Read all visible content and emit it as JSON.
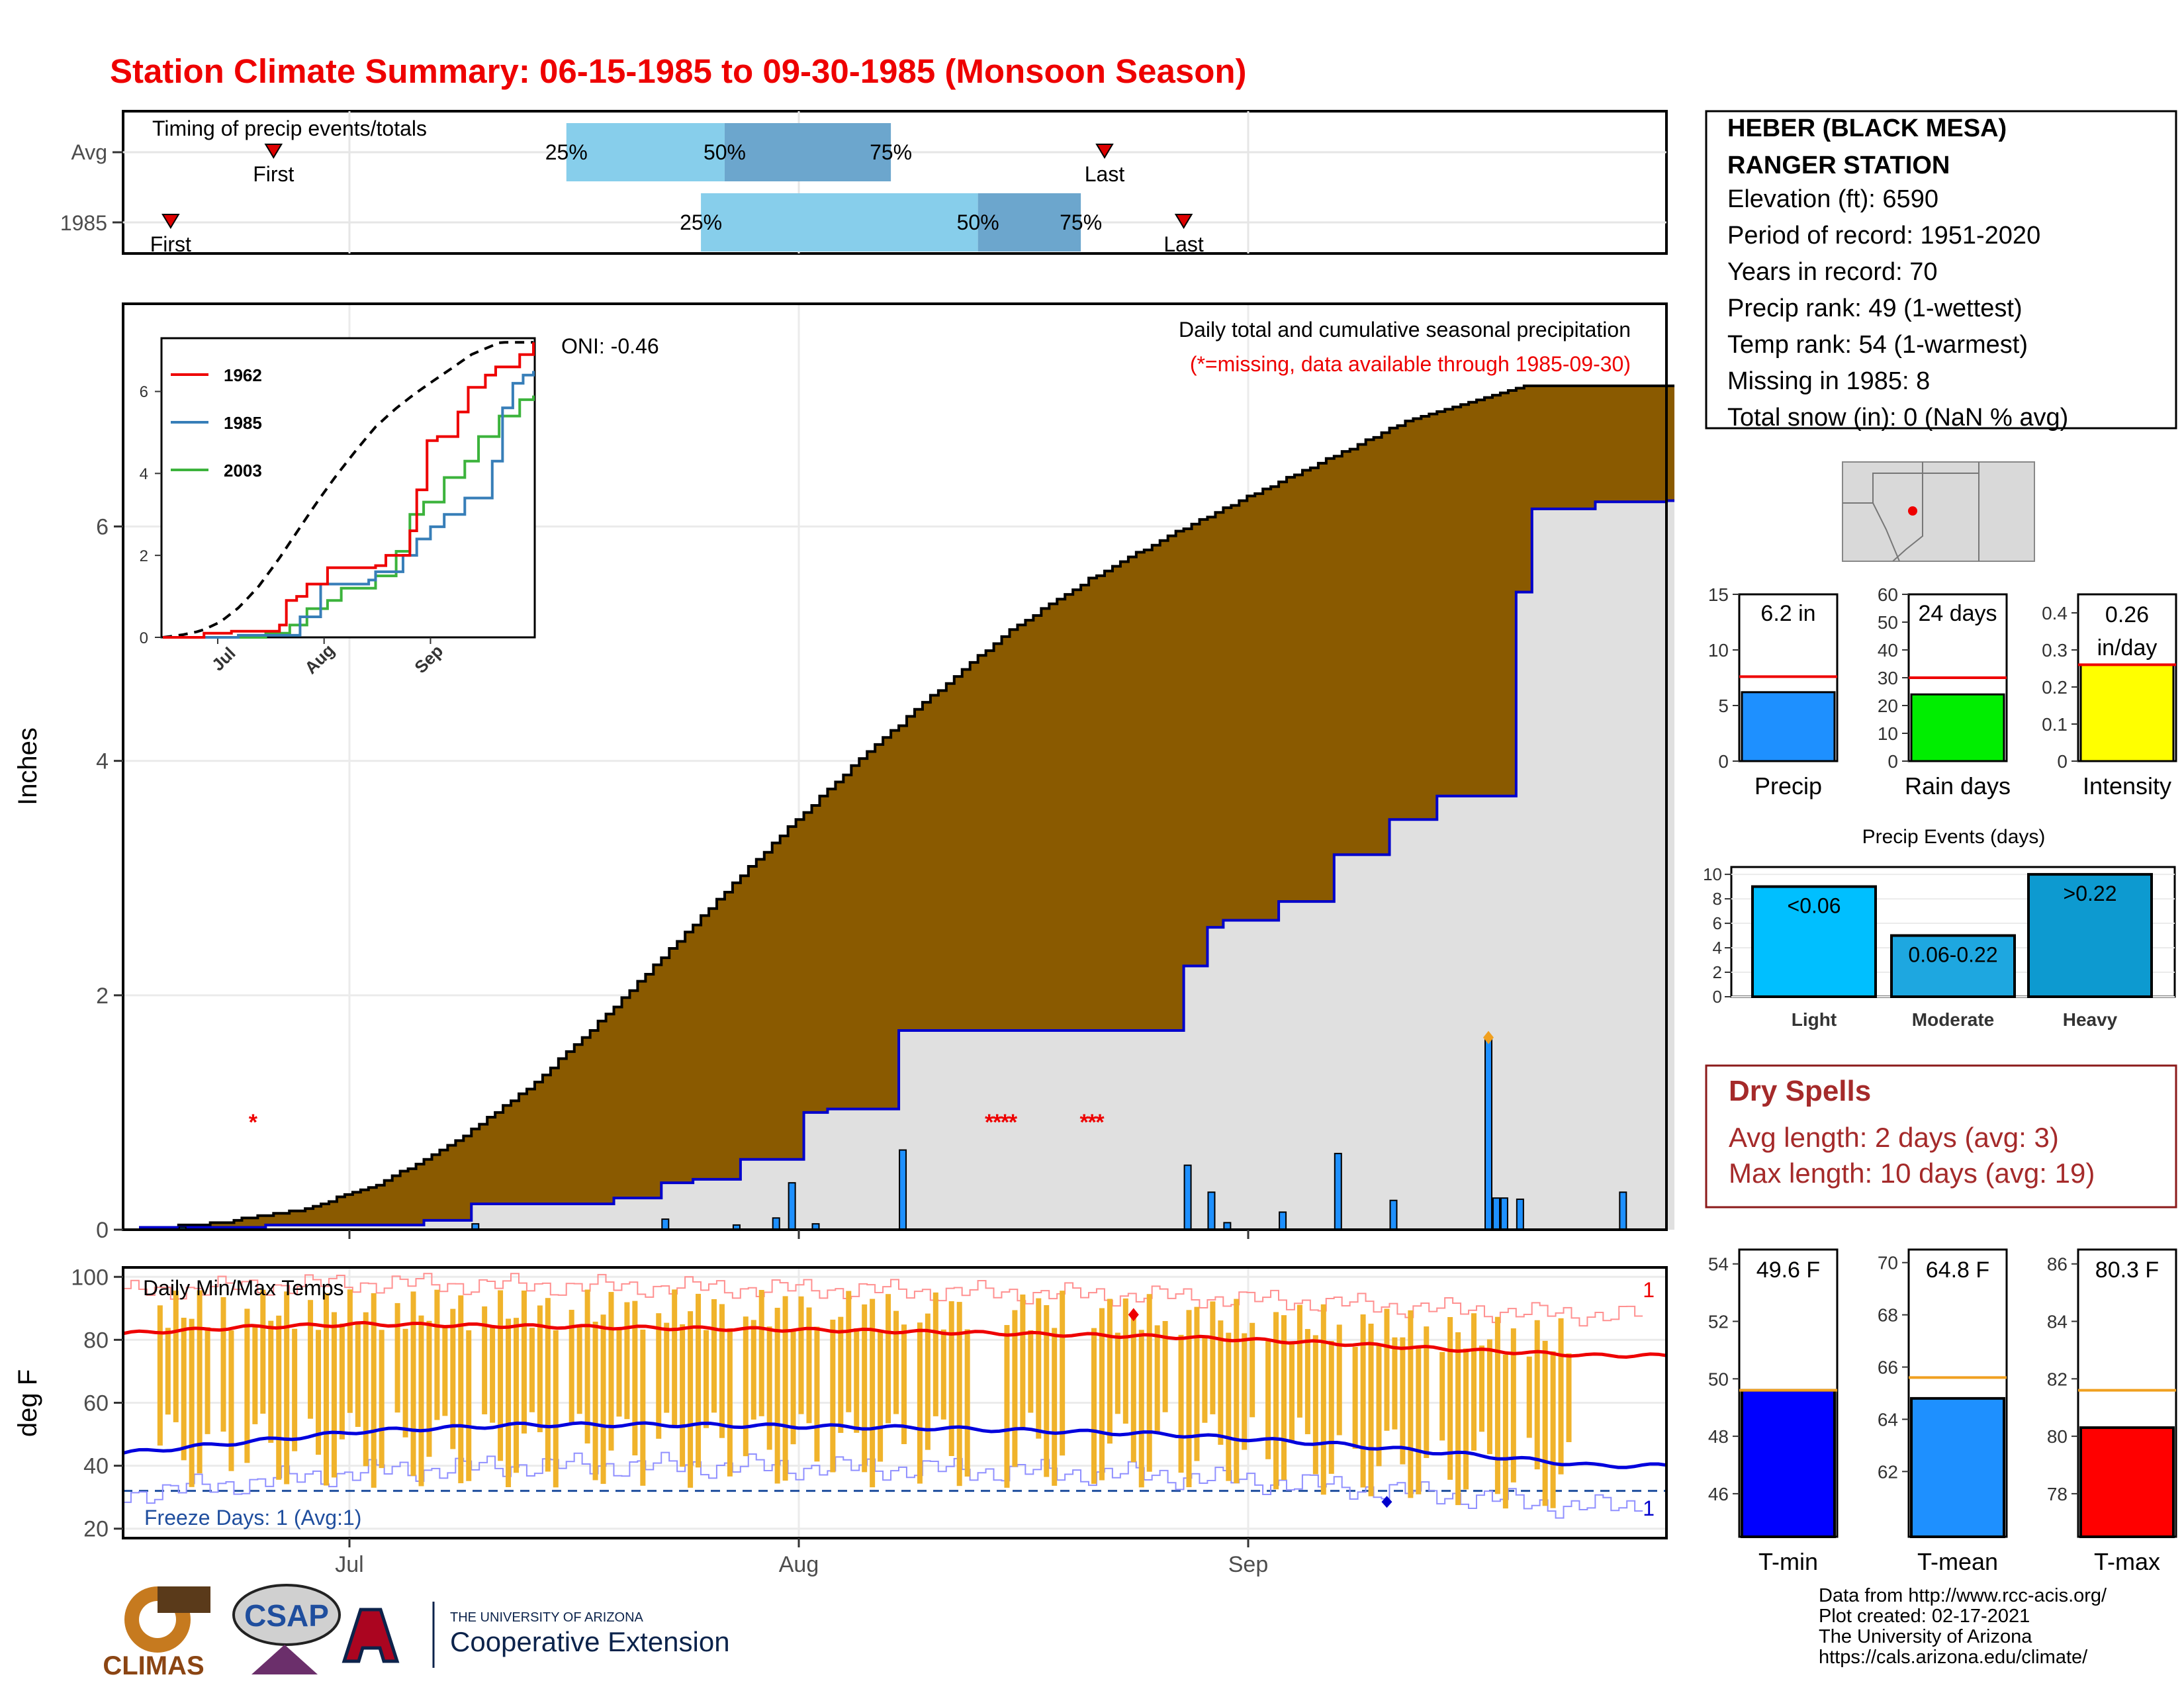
{
  "title": "Station Climate Summary: 06-15-1985 to 09-30-1985 (Monsoon Season)",
  "colors": {
    "title": "#ee0000",
    "precip_fill": "#8a5a00",
    "daily_bar": "#1e90ff",
    "cum_1985": "#0000cc",
    "gray_area": "#e0e0e0",
    "temp_bar": "#f0b32b",
    "tmax_avg": "#ee0000",
    "tmin_avg": "#0000dd",
    "record_max": "#ff9090",
    "record_min": "#9090ff",
    "dry_spells_text": "#a52a2a"
  },
  "timing": {
    "label": "Timing of precip events/totals",
    "rows": [
      "Avg",
      "1985"
    ],
    "pct_labels": [
      "25%",
      "50%",
      "75%"
    ],
    "first_label": "First",
    "last_label": "Last",
    "avg": {
      "first": 17,
      "q25": 54,
      "q50": 74,
      "q75": 95,
      "last": 122
    },
    "y1985": {
      "first": 4,
      "q25": 71,
      "q50": 106,
      "q75": 119,
      "last": 132
    }
  },
  "station": {
    "name_line1": "HEBER (BLACK MESA)",
    "name_line2": "RANGER STATION",
    "elevation": "Elevation (ft): 6590",
    "period": "Period of record: 1951-2020",
    "years": "Years in record: 70",
    "precip_rank": "Precip rank: 49 (1-wettest)",
    "temp_rank": "Temp rank: 54 (1-warmest)",
    "missing": "Missing in 1985: 8",
    "snow": "Total snow (in): 0 (NaN % avg)"
  },
  "main_panel": {
    "ylabel": "Inches",
    "oni": "ONI: -0.46",
    "subtitle": "Daily total and cumulative seasonal precipitation",
    "missing_note": "(*=missing, data available through 1985-09-30)",
    "missing_marker": "*"
  },
  "inset": {
    "legend": [
      "1962",
      "1985",
      "2003"
    ],
    "x_ticks": [
      "Jul",
      "Aug",
      "Sep"
    ],
    "y_ticks": [
      "0",
      "2",
      "4",
      "6"
    ]
  },
  "temp_panel": {
    "label": "Daily Min/Max Temps",
    "ylabel": "deg F",
    "freeze": "Freeze Days: 1 (Avg:1)",
    "count_top": "1",
    "count_bottom": "1",
    "y_ticks": [
      "20",
      "40",
      "60",
      "80",
      "100"
    ]
  },
  "x_axis": {
    "months": [
      "Jul",
      "Aug",
      "Sep"
    ]
  },
  "small_bars": [
    {
      "label": "Precip",
      "value_label": "6.2 in",
      "value": 6.2,
      "avg": 7.6,
      "ymax": 15,
      "ticks": [
        0,
        5,
        10,
        15
      ],
      "color": "#1e90ff"
    },
    {
      "label": "Rain days",
      "value_label": "24 days",
      "value": 24,
      "avg": 30,
      "ymax": 60,
      "ticks": [
        0,
        10,
        20,
        30,
        40,
        50,
        60
      ],
      "color": "#00ee00"
    },
    {
      "label": "Intensity",
      "value_label": "0.26 in/day",
      "value": 0.26,
      "avg": 0.26,
      "ymax": 0.45,
      "ticks": [
        0.0,
        0.1,
        0.2,
        0.3,
        0.4
      ],
      "color": "#ffff00"
    }
  ],
  "events": {
    "title": "Precip Events (days)",
    "bars": [
      {
        "label": "Light",
        "value_label": "<0.06",
        "value": 9,
        "color": "#00bfff"
      },
      {
        "label": "Moderate",
        "value_label": "0.06-0.22",
        "value": 5,
        "color": "#1ea7e0"
      },
      {
        "label": "Heavy",
        "value_label": ">0.22",
        "value": 10,
        "color": "#0d9ad0"
      }
    ],
    "y_ticks": [
      0,
      2,
      4,
      6,
      8,
      10
    ]
  },
  "dry_spells": {
    "title": "Dry Spells",
    "avg": "Avg length: 2 days (avg: 3)",
    "max": "Max length: 10 days (avg: 19)"
  },
  "temp_bars": [
    {
      "label": "T-min",
      "value_label": "49.6 F",
      "value": 49.6,
      "avg": 49.6,
      "ymin": 44.5,
      "ymax": 54.5,
      "ticks": [
        46,
        48,
        50,
        52,
        54
      ],
      "color": "#0000ff"
    },
    {
      "label": "T-mean",
      "value_label": "64.8 F",
      "value": 64.8,
      "avg": 65.6,
      "ymin": 59.5,
      "ymax": 70.5,
      "ticks": [
        62,
        64,
        66,
        68,
        70
      ],
      "color": "#1e90ff"
    },
    {
      "label": "T-max",
      "value_label": "80.3 F",
      "value": 80.3,
      "avg": 81.6,
      "ymin": 76.5,
      "ymax": 86.5,
      "ticks": [
        78,
        80,
        82,
        84,
        86
      ],
      "color": "#ff0000"
    }
  ],
  "footer": {
    "line1": "Data from http://www.rcc-acis.org/",
    "line2": "Plot created: 02-17-2021",
    "line3": "The University of Arizona",
    "line4": "https://cals.arizona.edu/climate/",
    "climas": "CLIMAS",
    "csap": "CSAP",
    "ua_small": "THE UNIVERSITY OF ARIZONA",
    "ua_big": "Cooperative Extension"
  },
  "chart_data": {
    "type": "area",
    "title": "Station Climate Summary: 06-15-1985 to 09-30-1985 (Monsoon Season)",
    "xlabel": "",
    "ylabel": "Inches",
    "x_range": [
      "1985-06-15",
      "1985-09-30"
    ],
    "ylim": [
      0,
      7.9
    ],
    "avg_cumulative": [
      [
        0,
        0.0
      ],
      [
        10,
        0.06
      ],
      [
        20,
        0.16
      ],
      [
        30,
        0.38
      ],
      [
        40,
        0.75
      ],
      [
        50,
        1.26
      ],
      [
        60,
        1.9
      ],
      [
        70,
        2.6
      ],
      [
        80,
        3.3
      ],
      [
        90,
        3.95
      ],
      [
        100,
        4.55
      ],
      [
        110,
        5.12
      ],
      [
        120,
        5.55
      ],
      [
        130,
        5.92
      ],
      [
        140,
        6.25
      ],
      [
        150,
        6.57
      ],
      [
        160,
        6.9
      ],
      [
        175,
        7.2
      ]
    ],
    "cumulative_1985": [
      [
        0,
        0.02
      ],
      [
        16,
        0.04
      ],
      [
        36,
        0.08
      ],
      [
        42,
        0.22
      ],
      [
        60,
        0.27
      ],
      [
        66,
        0.4
      ],
      [
        70,
        0.43
      ],
      [
        76,
        0.6
      ],
      [
        78,
        0.6
      ],
      [
        84,
        1.0
      ],
      [
        87,
        1.03
      ],
      [
        95,
        1.03
      ],
      [
        96,
        1.7
      ],
      [
        131,
        1.7
      ],
      [
        132,
        2.25
      ],
      [
        135,
        2.58
      ],
      [
        137,
        2.64
      ],
      [
        142,
        2.64
      ],
      [
        144,
        2.8
      ],
      [
        151,
        3.2
      ],
      [
        158,
        3.5
      ],
      [
        164,
        3.7
      ],
      [
        174,
        5.44
      ],
      [
        176,
        6.15
      ],
      [
        182,
        6.15
      ],
      [
        184,
        6.21
      ],
      [
        193,
        6.22
      ]
    ],
    "daily_1985": [
      [
        5,
        0.02
      ],
      [
        42,
        0.05
      ],
      [
        66,
        0.09
      ],
      [
        75,
        0.04
      ],
      [
        80,
        0.1
      ],
      [
        82,
        0.4
      ],
      [
        85,
        0.05
      ],
      [
        96,
        0.68
      ],
      [
        132,
        0.55
      ],
      [
        135,
        0.32
      ],
      [
        137,
        0.06
      ],
      [
        144,
        0.15
      ],
      [
        151,
        0.65
      ],
      [
        158,
        0.25
      ],
      [
        170,
        1.64
      ],
      [
        171,
        0.27
      ],
      [
        172,
        0.27
      ],
      [
        174,
        0.26
      ],
      [
        187,
        0.32
      ]
    ],
    "missing_days": [
      14,
      107,
      108,
      109,
      110,
      119,
      120,
      121
    ],
    "temperature": {
      "ylim": [
        17,
        103
      ],
      "avg_max": [
        [
          0,
          82
        ],
        [
          15,
          84
        ],
        [
          30,
          85
        ],
        [
          60,
          84
        ],
        [
          90,
          83
        ],
        [
          110,
          82
        ],
        [
          130,
          81
        ],
        [
          150,
          79
        ],
        [
          165,
          77
        ],
        [
          183,
          75
        ]
      ],
      "avg_min": [
        [
          0,
          44
        ],
        [
          30,
          51
        ],
        [
          50,
          53
        ],
        [
          70,
          53
        ],
        [
          100,
          52
        ],
        [
          130,
          50
        ],
        [
          150,
          47
        ],
        [
          170,
          43
        ],
        [
          183,
          40
        ]
      ],
      "daily_max_range": [
        83,
        96
      ],
      "daily_min_range": [
        33,
        57
      ]
    }
  }
}
